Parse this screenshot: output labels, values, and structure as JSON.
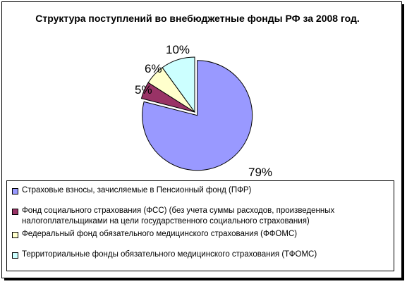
{
  "chart_data": {
    "type": "pie",
    "title": "Структура поступлений во внебюджетные фонды РФ за 2008 год.",
    "labels": [
      "Страховые взносы, зачисляемые в  Пенсионный фонд (ПФР)",
      "Фонд социального страхования (ФСС) (без учета суммы расходов, произведенных налогоплательщиками на цели государственного социального страхования)",
      "Федеральный фонд обязательного медицинского страхования (ФФОМС)",
      "Территориальные фонды обязательного медицинского страхования (ТФОМС)"
    ],
    "values": [
      79,
      5,
      6,
      10
    ],
    "data_labels": [
      "79%",
      "5%",
      "6%",
      "10%"
    ],
    "colors": [
      "#9999ff",
      "#993366",
      "#ffffcc",
      "#ccffff"
    ],
    "exploded_slice": 0,
    "legend_position": "bottom"
  },
  "legend": {
    "items": [
      {
        "text": "Страховые взносы, зачисляемые в  Пенсионный фонд (ПФР)",
        "color": "#9999ff"
      },
      {
        "text": "Фонд социального страхования (ФСС) (без учета суммы расходов, произведенных\nналогоплательщиками на цели государственного социального страхования)",
        "color": "#993366"
      },
      {
        "text": "Федеральный фонд обязательного медицинского страхования (ФФОМС)",
        "color": "#ffffcc"
      },
      {
        "text": "Территориальные фонды обязательного медицинского страхования (ТФОМС)",
        "color": "#ccffff"
      }
    ]
  }
}
